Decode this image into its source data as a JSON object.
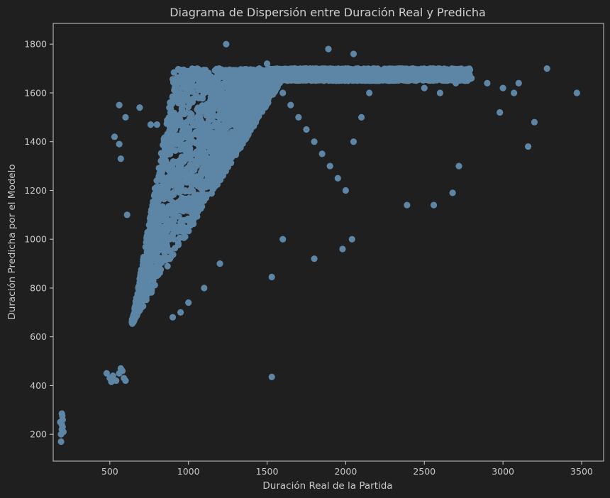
{
  "colors": {
    "background": "#1f1f1f",
    "axes": "#c8c8c8",
    "points": "#5d86a6"
  },
  "chart_data": {
    "type": "scatter",
    "title": "Diagrama de Dispersión entre Duración Real y Predicha",
    "xlabel": "Duración Real de la Partida",
    "ylabel": "Duración Predicha por el Modelo",
    "xlim": [
      140,
      3640
    ],
    "ylim": [
      90,
      1885
    ],
    "xticks": [
      500,
      1000,
      1500,
      2000,
      2500,
      3000,
      3500
    ],
    "yticks": [
      200,
      400,
      600,
      800,
      1000,
      1200,
      1400,
      1600,
      1800
    ],
    "grid": false,
    "legend": "none",
    "series": [
      {
        "points": [
          [
            190,
            170
          ],
          [
            190,
            200
          ],
          [
            195,
            220
          ],
          [
            195,
            240
          ],
          [
            200,
            260
          ],
          [
            195,
            285
          ],
          [
            200,
            230
          ],
          [
            185,
            250
          ],
          [
            205,
            210
          ],
          [
            198,
            275
          ],
          [
            480,
            450
          ],
          [
            500,
            430
          ],
          [
            520,
            440
          ],
          [
            540,
            420
          ],
          [
            560,
            450
          ],
          [
            580,
            460
          ],
          [
            590,
            430
          ],
          [
            600,
            420
          ],
          [
            510,
            415
          ],
          [
            570,
            470
          ],
          [
            650,
            660
          ],
          [
            680,
            700
          ],
          [
            700,
            720
          ],
          [
            720,
            760
          ],
          [
            760,
            800
          ],
          [
            800,
            850
          ],
          [
            820,
            900
          ],
          [
            850,
            950
          ],
          [
            880,
            1000
          ],
          [
            900,
            1050
          ],
          [
            920,
            1100
          ],
          [
            950,
            1150
          ],
          [
            980,
            1200
          ],
          [
            1000,
            1250
          ],
          [
            1050,
            1300
          ],
          [
            1100,
            1350
          ],
          [
            1150,
            1400
          ],
          [
            1200,
            1450
          ],
          [
            1250,
            1500
          ],
          [
            1300,
            1550
          ],
          [
            1350,
            1600
          ],
          [
            1400,
            1650
          ],
          [
            1450,
            1700
          ],
          [
            1500,
            1720
          ],
          [
            1550,
            1650
          ],
          [
            1600,
            1600
          ],
          [
            1650,
            1550
          ],
          [
            1700,
            1500
          ],
          [
            1750,
            1450
          ],
          [
            1800,
            1400
          ],
          [
            1850,
            1350
          ],
          [
            1900,
            1300
          ],
          [
            1950,
            1250
          ],
          [
            2000,
            1200
          ],
          [
            2050,
            1400
          ],
          [
            2100,
            1500
          ],
          [
            2150,
            1600
          ],
          [
            2200,
            1650
          ],
          [
            2300,
            1680
          ],
          [
            2400,
            1650
          ],
          [
            2500,
            1620
          ],
          [
            2600,
            1600
          ],
          [
            2700,
            1640
          ],
          [
            2800,
            1660
          ],
          [
            2900,
            1640
          ],
          [
            3000,
            1620
          ],
          [
            3100,
            1640
          ],
          [
            3200,
            1480
          ],
          [
            3160,
            1380
          ],
          [
            3280,
            1700
          ],
          [
            3470,
            1600
          ],
          [
            3070,
            1600
          ],
          [
            2980,
            1520
          ],
          [
            2720,
            1300
          ],
          [
            2680,
            1190
          ],
          [
            2560,
            1140
          ],
          [
            2390,
            1140
          ],
          [
            1800,
            920
          ],
          [
            1530,
            845
          ],
          [
            1530,
            435
          ],
          [
            1240,
            1800
          ],
          [
            1890,
            1780
          ],
          [
            2050,
            1760
          ],
          [
            530,
            1420
          ],
          [
            560,
            1390
          ],
          [
            570,
            1330
          ],
          [
            560,
            1550
          ],
          [
            600,
            1500
          ],
          [
            690,
            1540
          ],
          [
            610,
            1100
          ],
          [
            1980,
            960
          ],
          [
            2040,
            1000
          ],
          [
            1600,
            1000
          ],
          [
            1200,
            900
          ],
          [
            1100,
            800
          ],
          [
            1000,
            740
          ],
          [
            950,
            700
          ],
          [
            900,
            680
          ],
          [
            800,
            1470
          ],
          [
            760,
            1470
          ]
        ]
      }
    ]
  }
}
